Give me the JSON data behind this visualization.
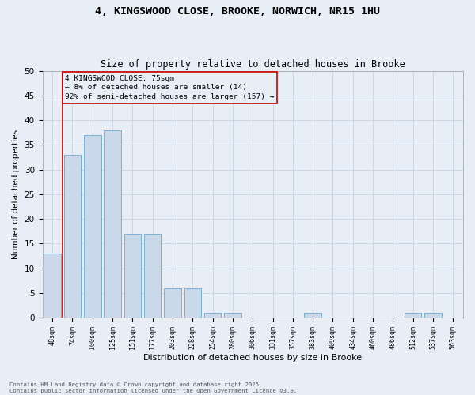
{
  "title_line1": "4, KINGSWOOD CLOSE, BROOKE, NORWICH, NR15 1HU",
  "title_line2": "Size of property relative to detached houses in Brooke",
  "xlabel": "Distribution of detached houses by size in Brooke",
  "ylabel": "Number of detached properties",
  "categories": [
    "48sqm",
    "74sqm",
    "100sqm",
    "125sqm",
    "151sqm",
    "177sqm",
    "203sqm",
    "228sqm",
    "254sqm",
    "280sqm",
    "306sqm",
    "331sqm",
    "357sqm",
    "383sqm",
    "409sqm",
    "434sqm",
    "460sqm",
    "486sqm",
    "512sqm",
    "537sqm",
    "563sqm"
  ],
  "values": [
    13,
    33,
    37,
    38,
    17,
    17,
    6,
    6,
    1,
    1,
    0,
    0,
    0,
    1,
    0,
    0,
    0,
    0,
    1,
    1,
    0
  ],
  "bar_color": "#c9d9ea",
  "bar_edge_color": "#6aaad4",
  "grid_color": "#c8d4e4",
  "bg_color": "#e8eef6",
  "annotation_text": "4 KINGSWOOD CLOSE: 75sqm\n← 8% of detached houses are smaller (14)\n92% of semi-detached houses are larger (157) →",
  "annotation_box_color": "#cc0000",
  "vline_color": "#cc0000",
  "ylim": [
    0,
    50
  ],
  "yticks": [
    0,
    5,
    10,
    15,
    20,
    25,
    30,
    35,
    40,
    45,
    50
  ],
  "footer_line1": "Contains HM Land Registry data © Crown copyright and database right 2025.",
  "footer_line2": "Contains public sector information licensed under the Open Government Licence v3.0."
}
